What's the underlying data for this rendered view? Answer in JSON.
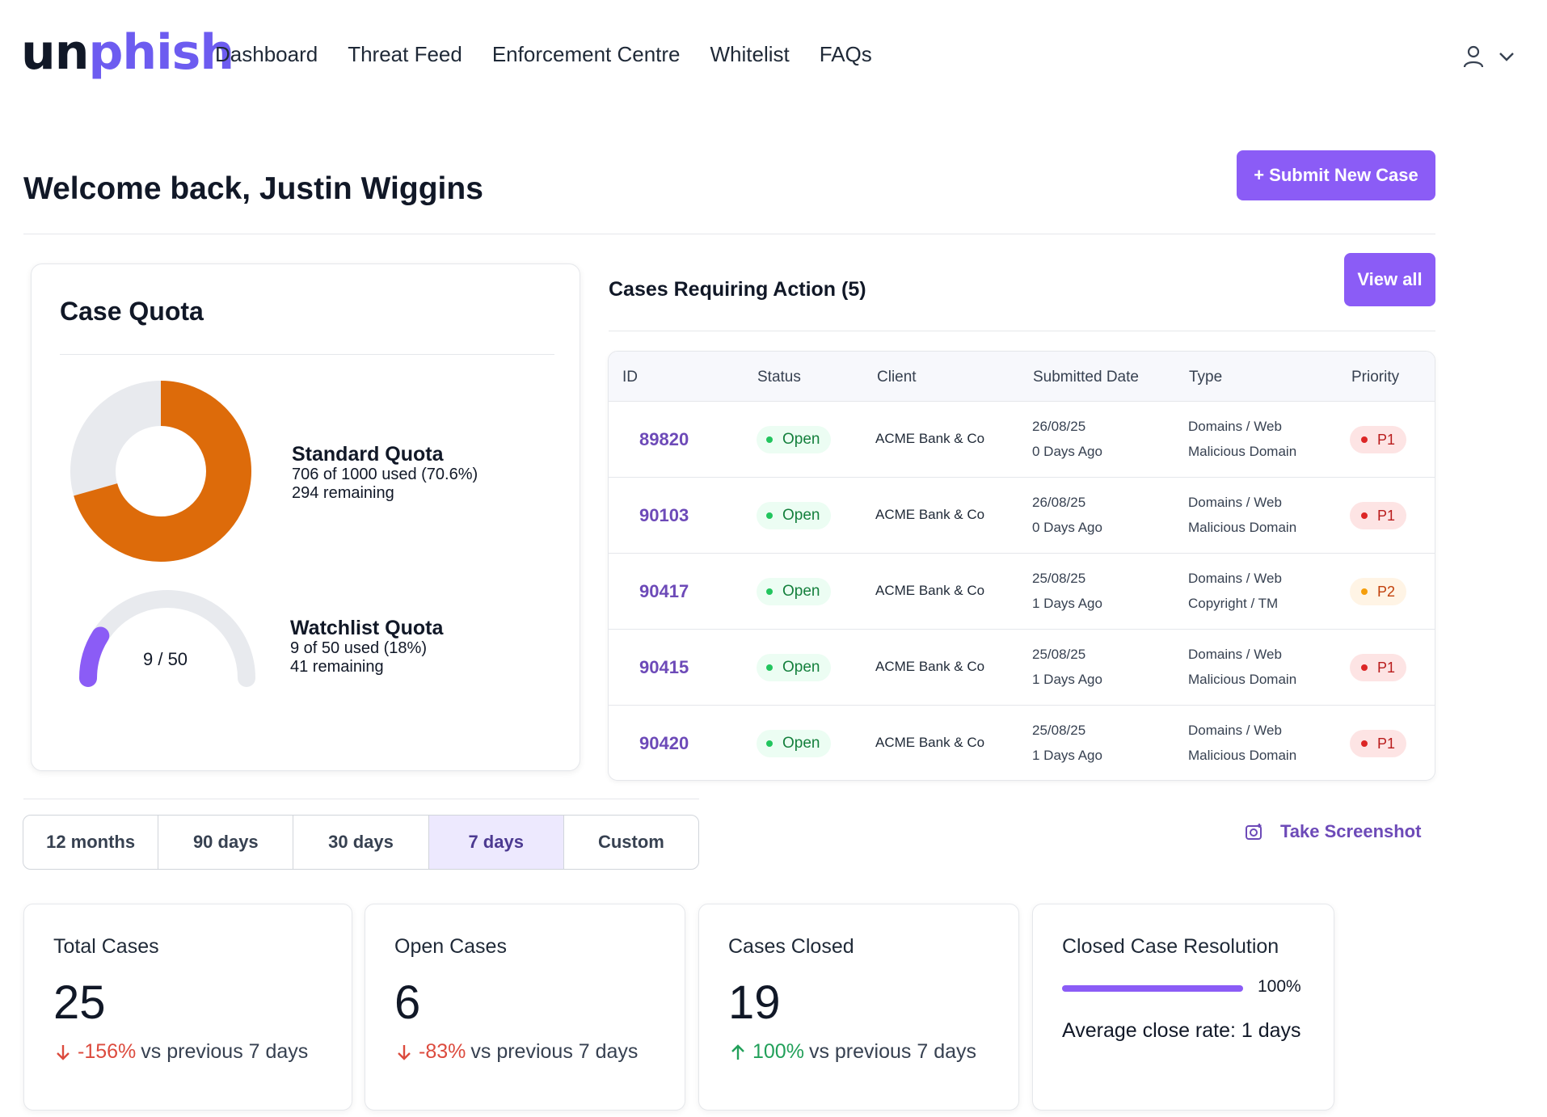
{
  "brand": {
    "logo_part1": "un",
    "logo_part2": "phish",
    "accent_color": "#8b5cf6",
    "link_color": "#6d4ab8"
  },
  "nav": {
    "links": [
      "Dashboard",
      "Threat Feed",
      "Enforcement Centre",
      "Whitelist",
      "FAQs"
    ],
    "user_icon": "user-icon",
    "dropdown_icon": "chevron-down-icon"
  },
  "header": {
    "welcome": "Welcome back, Justin Wiggins",
    "submit_button": "+ Submit New Case"
  },
  "quota": {
    "title": "Case Quota",
    "standard": {
      "name": "Standard Quota",
      "used_line": "706 of 1000 used (70.6%)",
      "remaining_line": "294 remaining",
      "used": 706,
      "total": 1000,
      "color": "#dd6b0a"
    },
    "watchlist": {
      "name": "Watchlist Quota",
      "used_line": "9 of 50 used (18%)",
      "remaining_line": "41 remaining",
      "used": 9,
      "total": 50,
      "gauge_label": "9 / 50",
      "color": "#8b5cf6"
    }
  },
  "cases": {
    "title": "Cases Requiring Action (5)",
    "view_all": "View all",
    "columns": [
      "ID",
      "Status",
      "Client",
      "Submitted Date",
      "Type",
      "Priority"
    ],
    "rows": [
      {
        "id": "89820",
        "status": "Open",
        "client": "ACME Bank & Co",
        "date": "26/08/25",
        "ago": "0 Days Ago",
        "type": "Domains / Web",
        "subtype": "Malicious Domain",
        "priority": "P1"
      },
      {
        "id": "90103",
        "status": "Open",
        "client": "ACME Bank & Co",
        "date": "26/08/25",
        "ago": "0 Days Ago",
        "type": "Domains / Web",
        "subtype": "Malicious Domain",
        "priority": "P1"
      },
      {
        "id": "90417",
        "status": "Open",
        "client": "ACME Bank & Co",
        "date": "25/08/25",
        "ago": "1 Days Ago",
        "type": "Domains / Web",
        "subtype": "Copyright / TM",
        "priority": "P2"
      },
      {
        "id": "90415",
        "status": "Open",
        "client": "ACME Bank & Co",
        "date": "25/08/25",
        "ago": "1 Days Ago",
        "type": "Domains / Web",
        "subtype": "Malicious Domain",
        "priority": "P1"
      },
      {
        "id": "90420",
        "status": "Open",
        "client": "ACME Bank & Co",
        "date": "25/08/25",
        "ago": "1 Days Ago",
        "type": "Domains / Web",
        "subtype": "Malicious Domain",
        "priority": "P1"
      }
    ]
  },
  "filters": {
    "options": [
      "12 months",
      "90 days",
      "30 days",
      "7 days",
      "Custom"
    ],
    "selected": "7 days"
  },
  "screenshot": {
    "label": "Take Screenshot",
    "icon": "camera-icon"
  },
  "stats": {
    "total": {
      "title": "Total Cases",
      "value": "25",
      "delta": "-156%",
      "suffix": "vs previous 7 days"
    },
    "open": {
      "title": "Open Cases",
      "value": "6",
      "delta": "-83%",
      "suffix": "vs previous 7 days"
    },
    "closed": {
      "title": "Cases Closed",
      "value": "19",
      "delta": "100%",
      "suffix": "vs previous 7 days"
    },
    "resolution": {
      "title": "Closed Case Resolution",
      "percent": "100%",
      "percent_value": 100,
      "average": "Average close rate: 1 days"
    }
  }
}
